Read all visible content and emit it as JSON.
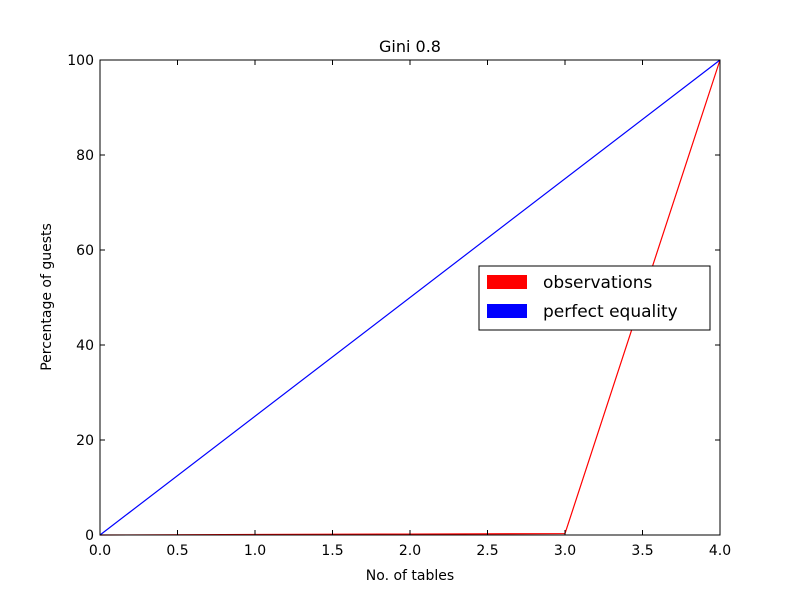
{
  "chart_data": {
    "type": "line",
    "title": "Gini 0.8",
    "xlabel": "No. of tables",
    "ylabel": "Percentage of guests",
    "xlim": [
      0,
      4
    ],
    "ylim": [
      0,
      100
    ],
    "x_ticks": [
      "0.0",
      "0.5",
      "1.0",
      "1.5",
      "2.0",
      "2.5",
      "3.0",
      "3.5",
      "4.0"
    ],
    "y_ticks": [
      "0",
      "20",
      "40",
      "60",
      "80",
      "100"
    ],
    "grid": false,
    "legend_position": "center-right",
    "series": [
      {
        "name": "observations",
        "color": "#ff0000",
        "x": [
          0,
          1,
          2,
          3,
          4
        ],
        "y": [
          0,
          0.1,
          0.2,
          0.3,
          100
        ]
      },
      {
        "name": "perfect equality",
        "color": "#0000ff",
        "x": [
          0,
          4
        ],
        "y": [
          0,
          100
        ]
      }
    ]
  }
}
